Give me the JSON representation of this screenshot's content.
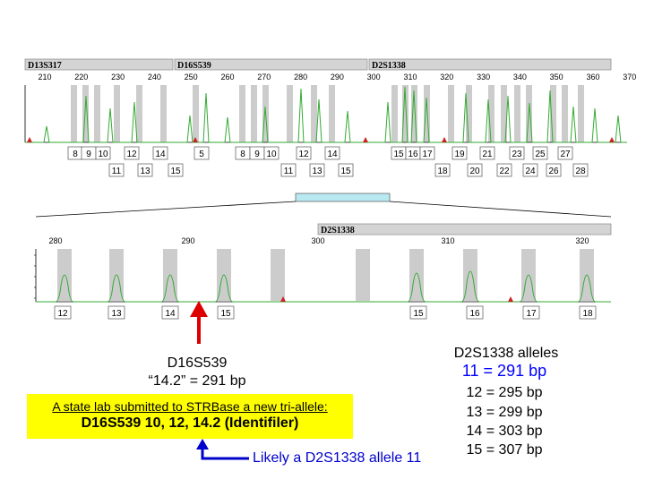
{
  "top_panel": {
    "locus_labels": [
      "D13S317",
      "D16S539",
      "D2S1338"
    ],
    "scale_ticks": [
      "210",
      "220",
      "230",
      "240",
      "250",
      "260",
      "270",
      "280",
      "290",
      "300",
      "310",
      "320",
      "330",
      "340",
      "350",
      "360",
      "370"
    ],
    "bins_row1": [
      "8",
      "9",
      "10",
      "12",
      "14",
      "5",
      "8",
      "9",
      "10",
      "12",
      "14",
      "15",
      "16",
      "17",
      "19",
      "21",
      "23",
      "25",
      "27"
    ],
    "bins_row2": [
      "11",
      "13",
      "15",
      "11",
      "13",
      "15",
      "18",
      "20",
      "22",
      "24",
      "26",
      "28"
    ]
  },
  "zoom_panel": {
    "locus_label": "D2S1338",
    "scale_ticks": [
      "280",
      "290",
      "300",
      "310",
      "320"
    ],
    "bins": [
      "12",
      "13",
      "14",
      "15",
      "15",
      "16",
      "17",
      "18"
    ]
  },
  "left_callout": {
    "locus": "D16S539",
    "size_line": "“14.2” = 291 bp"
  },
  "notice": {
    "line1": "A state lab submitted to STRBase a new tri-allele:",
    "line2": "D16S539 10, 12, 14.2 (Identifiler)"
  },
  "alleles_table": {
    "title": "D2S1338 alleles",
    "highlight": "11 = 291 bp",
    "rows": [
      "12 = 295 bp",
      "13 = 299 bp",
      "14 = 303 bp",
      "15 = 307 bp"
    ]
  },
  "conclusion": "Likely a D2S1338 allele 11",
  "colors": {
    "trace": "#33aa33",
    "peak_marker": "#cc2222",
    "arrow_red": "#dd0000",
    "arrow_blue": "#0000cc",
    "header_bar": "#d4d4d4",
    "bin_shade": "#cccccc",
    "zoom_marker": "#b8e8f0",
    "highlight_box": "#ffff00",
    "allele_highlight": "#0000ff"
  }
}
